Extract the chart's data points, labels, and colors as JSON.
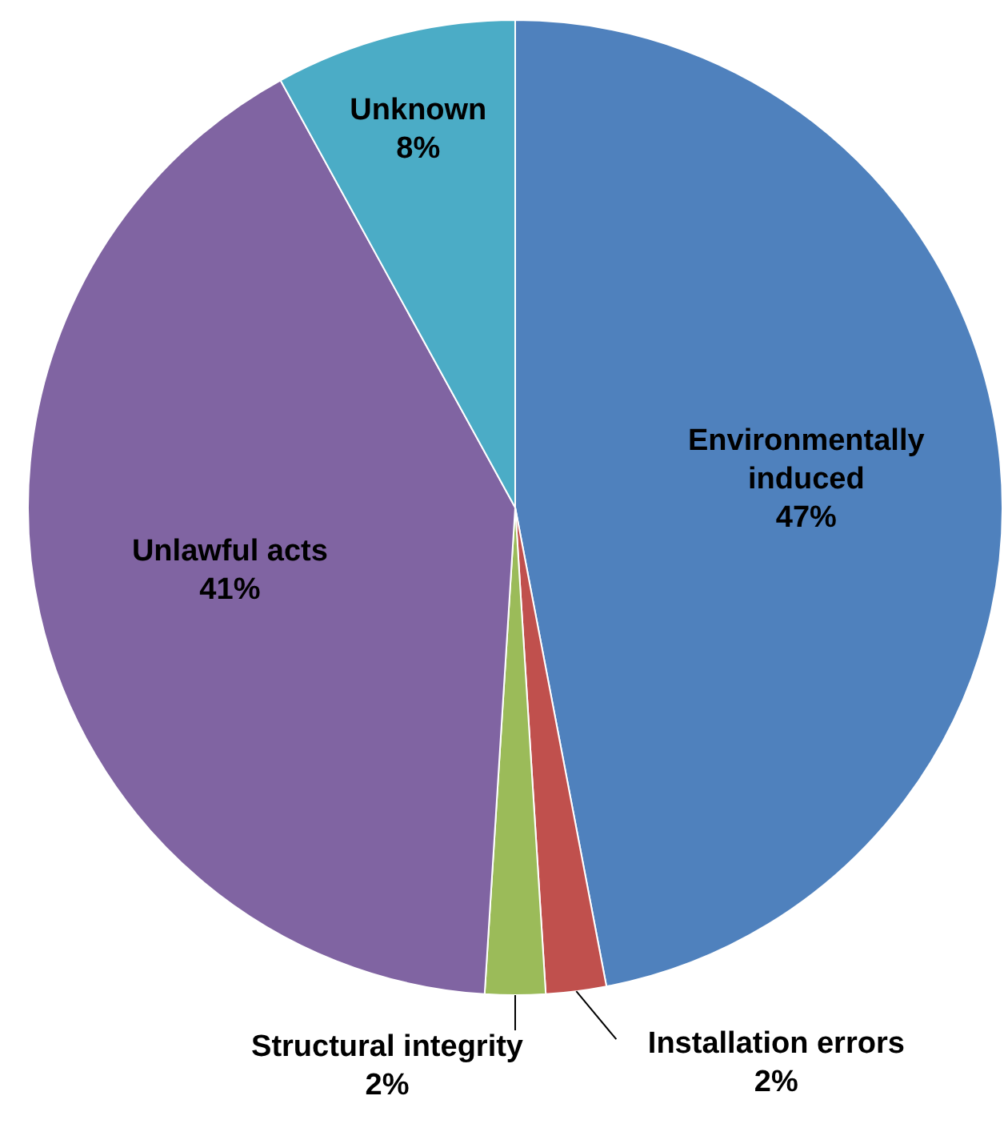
{
  "chart_data": {
    "type": "pie",
    "categories": [
      "Environmentally induced",
      "Installation errors",
      "Structural integrity",
      "Unlawful acts",
      "Unknown"
    ],
    "values": [
      47,
      2,
      2,
      41,
      8
    ],
    "value_labels": [
      "47%",
      "2%",
      "2%",
      "41%",
      "8%"
    ],
    "colors": [
      "#4f81bd",
      "#c0504d",
      "#9bbb59",
      "#8064a2",
      "#4bacc6"
    ],
    "legend": false
  }
}
